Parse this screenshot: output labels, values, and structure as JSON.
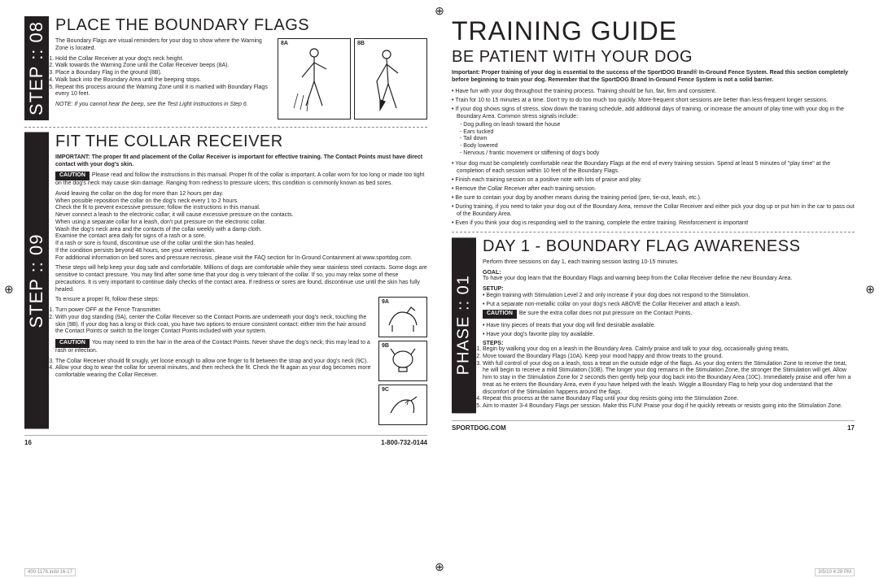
{
  "left": {
    "step08": {
      "label": "STEP :: 08",
      "heading": "PLACE THE BOUNDARY FLAGS",
      "intro": "The Boundary Flags are visual reminders for your dog to show where the Warning Zone is located.",
      "steps": [
        "Hold the Collar Receiver at your dog's neck height.",
        "Walk towards the Warning Zone until the Collar Receiver beeps (8A).",
        "Place a Boundary Flag in the ground (8B).",
        "Walk back into the Boundary Area until the beeping stops.",
        "Repeat this process around the Warning Zone until it is marked with Boundary Flags every 10 feet."
      ],
      "note": "NOTE: If you cannot hear the beep, see the Test Light Instructions in Step 6.",
      "fig_a": "8A",
      "fig_b": "8B"
    },
    "step09": {
      "label": "STEP :: 09",
      "heading": "FIT THE COLLAR RECEIVER",
      "important": "IMPORTANT: The proper fit and placement of the Collar Receiver is important for effective training. The Contact Points must have direct contact with your dog's skin.",
      "caution_label": "CAUTION",
      "caution_text": "Please read and follow the instructions in this manual. Proper fit of the collar is important. A collar worn for too long or made too tight on the dog's neck may cause skin damage. Ranging from redness to pressure ulcers; this condition is commonly known as bed sores.",
      "bullets": [
        "Avoid leaving the collar on the dog for more than 12 hours per day.",
        "When possible reposition the collar on the dog's neck every 1 to 2 hours.",
        "Check the fit to prevent excessive pressure; follow the instructions in this manual.",
        "Never connect a leash to the electronic collar; it will cause excessive pressure on the contacts.",
        "When using a separate collar for a leash, don't put pressure on the electronic collar.",
        "Wash the dog's neck area and the contacts of the collar weekly with a damp cloth.",
        "Examine the contact area daily for signs of a rash or a sore.",
        "If a rash or sore is found, discontinue use of the collar until the skin has healed.",
        "If the condition persists beyond 48 hours, see your veterinarian.",
        "For additional information on bed sores and pressure necrosis, please visit the FAQ section for In-Ground Containment at www.sportdog.com."
      ],
      "para2": "These steps will help keep your dog safe and comfortable. Millions of dogs are comfortable while they wear stainless steel contacts. Some dogs are sensitive to contact pressure. You may find after some time that your dog is very tolerant of the collar. If so, you may relax some of these precautions. It is very important to continue daily checks of the contact area. If redness or sores are found, discontinue use until the skin has fully healed.",
      "fit_intro": "To ensure a proper fit, follow these steps:",
      "fit_steps": [
        "Turn power OFF at the Fence Transmitter.",
        "With your dog standing (9A), center the Collar Receiver so the Contact Points are underneath your dog's neck, touching the skin (9B). If your dog has a long or thick coat, you have two options to ensure consistent contact: either trim the hair around the Contact Points or switch to the longer Contact Points included with your system."
      ],
      "caution2_label": "CAUTION",
      "caution2_text": "You may need to trim the hair in the area of the Contact Points. Never shave the dog's neck; this may lead to a rash or infection.",
      "fit_steps2": [
        "The Collar Receiver should fit snugly, yet loose enough to allow one finger to fit between the strap and your dog's neck (9C).",
        "Allow your dog to wear the collar for several minutes, and then recheck the fit. Check the fit again as your dog becomes more comfortable wearing the Collar Receiver."
      ],
      "fig_a": "9A",
      "fig_b": "9B",
      "fig_c": "9C"
    },
    "footer": {
      "pageno": "16",
      "phone": "1-800-732-0144"
    }
  },
  "right": {
    "title": "TRAINING GUIDE",
    "patient": {
      "heading": "BE PATIENT WITH YOUR DOG",
      "important": "Important: Proper training of your dog is essential to the success of the SportDOG Brand® In-Ground Fence System. Read this section completely before beginning to train your dog. Remember that the SportDOG Brand In-Ground Fence System is not a solid barrier.",
      "bullets1": [
        "Have fun with your dog throughout the training process. Training should be fun, fair, firm and consistent.",
        "Train for 10 to 15 minutes at a time. Don't try to do too much too quickly. More-frequent short sessions are better than less-frequent longer sessions.",
        "If your dog shows signs of stress, slow down the training schedule, add additional days of training, or increase the amount of play time with your dog in the Boundary Area. Common stress signals include:"
      ],
      "stress": [
        "Dog pulling on leash toward the house",
        "Ears tucked",
        "Tail down",
        "Body lowered",
        "Nervous / frantic movement or stiffening of dog's body"
      ],
      "bullets2": [
        "Your dog must be completely comfortable near the Boundary Flags at the end of every training session. Spend at least 5 minutes of \"play time\" at the completion of each session within 10 feet of the Boundary Flags.",
        "Finish each training session on a positive note with lots of praise and play.",
        "Remove the Collar Receiver after each training session.",
        "Be sure to contain your dog by another means during the training period (pen, tie-out, leash, etc.).",
        "During training, if you need to take your dog out of the Boundary Area, remove the Collar Receiver and either pick your dog up or put him in the car to pass out of the Boundary Area.",
        "Even if you think your dog is responding well to the training, complete the entire training. Reinforcement is important!"
      ]
    },
    "phase01": {
      "label": "PHASE :: 01",
      "heading": "DAY 1 - BOUNDARY FLAG AWARENESS",
      "intro": "Perform three sessions on day 1, each training session lasting 10-15 minutes.",
      "goal_label": "GOAL:",
      "goal_text": "To have your dog learn that the Boundary Flags and warning beep from the Collar Receiver define the new Boundary Area.",
      "setup_label": "SETUP:",
      "setup_bullets": [
        "Begin training with Stimulation Level 2 and only increase if your dog does not respond to the Stimulation.",
        "Put a separate non-metallic collar on your dog's neck ABOVE the Collar Receiver and attach a leash."
      ],
      "caution_label": "CAUTION",
      "caution_text": "Be sure the extra collar does not put pressure on the Contact Points.",
      "setup_bullets2": [
        "Have tiny pieces of treats that your dog will find desirable available.",
        "Have your dog's favorite play toy available."
      ],
      "steps_label": "STEPS:",
      "steps": [
        "Begin by walking your dog on a leash in the Boundary Area. Calmly praise and talk to your dog, occasionally giving treats.",
        "Move toward the Boundary Flags (10A). Keep your mood happy and throw treats to the ground.",
        "With full control of your dog on a leash, toss a treat on the outside edge of the flags. As your dog enters the Stimulation Zone to receive the treat, he will begin to receive a mild Stimulation (10B). The longer your dog remains in the Stimulation Zone, the stronger the Stimulation will get. Allow him to stay in the Stimulation Zone for 2 seconds then gently help your dog back into the Boundary Area (10C). Immediately praise and offer him a treat as he enters the Boundary Area, even if you have helped with the leash. Wiggle a Boundary Flag to help your dog understand that the discomfort of the Stimulation happens around the flags.",
        "Repeat this process at the same Boundary Flag until your dog resists going into the Stimulation Zone.",
        "Aim to master 3-4 Boundary Flags per session. Make this FUN! Praise your dog if he quickly retreats or resists going into the Stimulation Zone."
      ]
    },
    "footer": {
      "url": "SPORTDOG.COM",
      "pageno": "17"
    }
  },
  "slug": {
    "file": "400-1176.indd   16-17",
    "timestamp": "3/5/10   4:28 PM"
  }
}
